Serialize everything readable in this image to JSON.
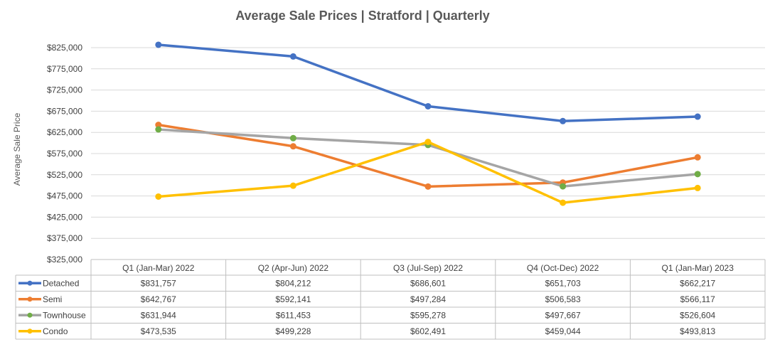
{
  "chart_data": {
    "type": "line",
    "title": "Average Sale Prices | Stratford |  Quarterly",
    "xlabel": "",
    "ylabel": "Average Sale Price",
    "ylim": [
      325000,
      850000
    ],
    "yticks": [
      325000,
      375000,
      425000,
      475000,
      525000,
      575000,
      625000,
      675000,
      725000,
      775000,
      825000
    ],
    "ytick_labels": [
      "$325,000",
      "$375,000",
      "$425,000",
      "$475,000",
      "$525,000",
      "$575,000",
      "$625,000",
      "$675,000",
      "$725,000",
      "$775,000",
      "$825,000"
    ],
    "grid": true,
    "legend": "data-table",
    "categories": [
      "Q1 (Jan-Mar) 2022",
      "Q2 (Apr-Jun) 2022",
      "Q3 (Jul-Sep) 2022",
      "Q4 (Oct-Dec) 2022",
      "Q1 (Jan-Mar) 2023"
    ],
    "series": [
      {
        "name": "Detached",
        "color": "#4472c4",
        "values": [
          831757,
          804212,
          686601,
          651703,
          662217
        ],
        "labels": [
          "$831,757",
          "$804,212",
          "$686,601",
          "$651,703",
          "$662,217"
        ]
      },
      {
        "name": "Semi",
        "color": "#ed7d31",
        "values": [
          642767,
          592141,
          497284,
          506583,
          566117
        ],
        "labels": [
          "$642,767",
          "$592,141",
          "$497,284",
          "$506,583",
          "$566,117"
        ]
      },
      {
        "name": "Townhouse",
        "color": "#a5a5a5",
        "marker_color": "#70ad47",
        "values": [
          631944,
          611453,
          595278,
          497667,
          526604
        ],
        "labels": [
          "$631,944",
          "$611,453",
          "$595,278",
          "$497,667",
          "$526,604"
        ]
      },
      {
        "name": "Condo",
        "color": "#ffc000",
        "values": [
          473535,
          499228,
          602491,
          459044,
          493813
        ],
        "labels": [
          "$473,535",
          "$499,228",
          "$602,491",
          "$459,044",
          "$493,813"
        ]
      }
    ]
  }
}
